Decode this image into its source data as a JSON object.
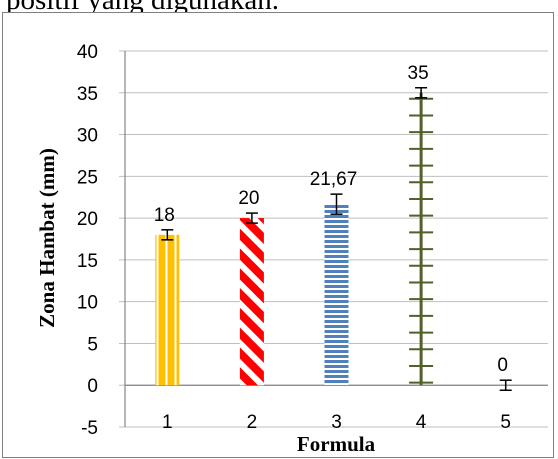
{
  "caption_fragment": "positif yang digunakan.",
  "colors": {
    "bar1": "#ffc000",
    "bar2": "#ff0000",
    "bar3": "#4f81bd",
    "bar4": "#4f6228",
    "grid": "#bfbfbf"
  },
  "chart_data": {
    "type": "bar",
    "title": "",
    "xlabel": "Formula",
    "ylabel": "Zona Hambat (mm)",
    "categories": [
      "1",
      "2",
      "3",
      "4",
      "5"
    ],
    "values": [
      18,
      20,
      21.67,
      35,
      0
    ],
    "data_labels": [
      "18",
      "20",
      "21,67",
      "35",
      "0"
    ],
    "error": [
      0.6,
      0.6,
      1.2,
      0.6,
      0.6
    ],
    "ylim": [
      -5,
      40
    ],
    "yticks": [
      -5,
      0,
      5,
      10,
      15,
      20,
      25,
      30,
      35,
      40
    ],
    "grid": true,
    "legend": "none",
    "patterns": [
      "vertical-stripes",
      "diagonal-stripes",
      "horizontal-stripes",
      "cross-ticks",
      "none"
    ]
  }
}
